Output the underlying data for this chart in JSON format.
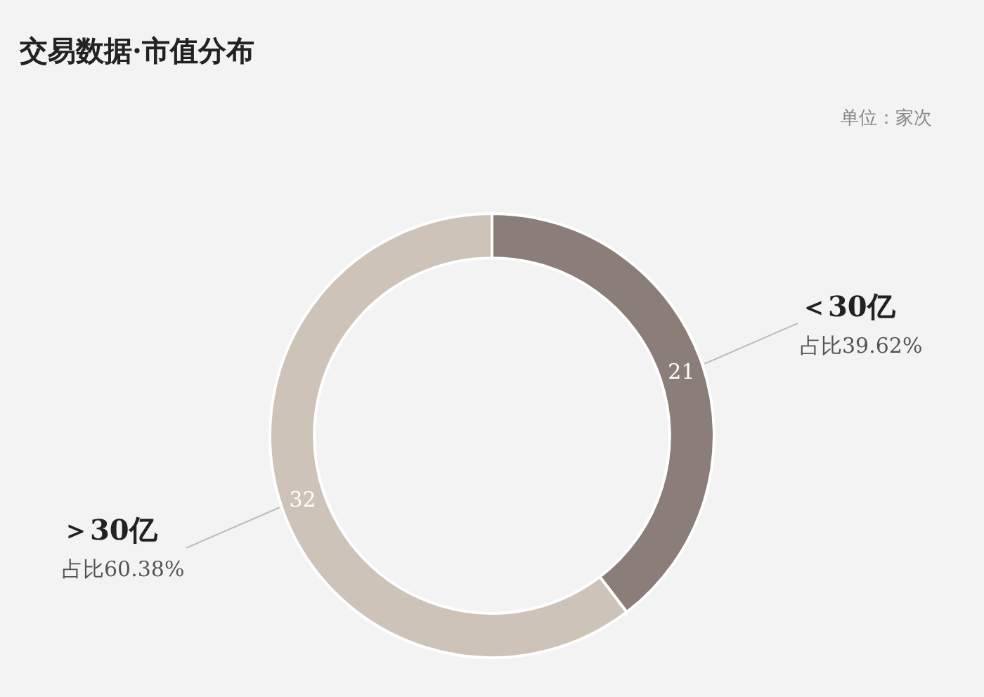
{
  "chart_data": {
    "type": "donut",
    "title": "交易数据·市值分布",
    "annotations": [
      "单位：家次",
      "占比39.62%",
      "占比60.38%"
    ],
    "categories": [
      "＜30亿",
      "＞30亿"
    ],
    "values": [
      21,
      32
    ],
    "colors": [
      "#8b7e79",
      "#cdc3b8"
    ],
    "data_labels": true,
    "legend": false
  }
}
